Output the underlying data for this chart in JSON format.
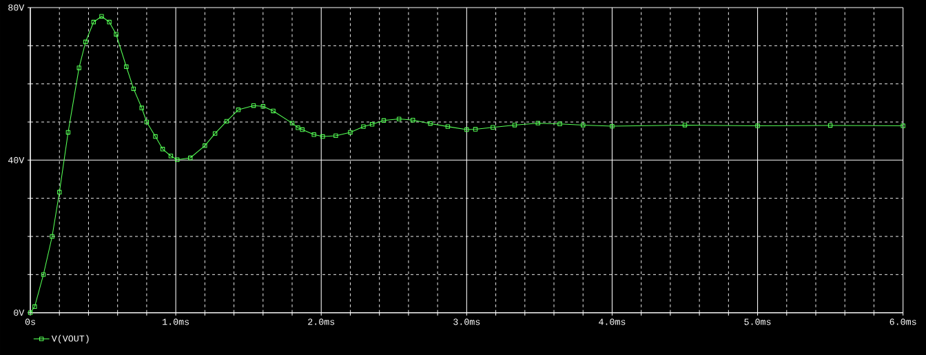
{
  "chart_data": {
    "type": "line",
    "x": [
      0,
      0.03,
      0.09,
      0.15,
      0.2,
      0.26,
      0.335,
      0.38,
      0.435,
      0.49,
      0.543,
      0.59,
      0.66,
      0.71,
      0.766,
      0.8,
      0.86,
      0.91,
      0.966,
      1.01,
      1.1,
      1.2,
      1.27,
      1.35,
      1.43,
      1.535,
      1.6,
      1.67,
      1.8,
      1.84,
      1.87,
      1.95,
      2.01,
      2.1,
      2.2,
      2.29,
      2.35,
      2.43,
      2.535,
      2.63,
      2.75,
      2.87,
      3.0,
      3.06,
      3.18,
      3.33,
      3.49,
      3.64,
      3.8,
      4.0,
      4.5,
      5.0,
      5.5,
      6.0
    ],
    "series": [
      {
        "name": "V(VOUT)",
        "color": "#55ff55",
        "values": [
          0,
          1.6,
          10,
          20,
          31.6,
          47.3,
          64.2,
          71,
          76.2,
          77.7,
          76.2,
          73,
          64.5,
          58.7,
          53.7,
          50,
          46.2,
          42.9,
          41.1,
          40.1,
          40.6,
          43.8,
          47,
          50.2,
          53.2,
          54.3,
          54.1,
          52.9,
          49.7,
          48.5,
          48,
          46.7,
          46.2,
          46.4,
          47.3,
          48.8,
          49.4,
          50.4,
          50.8,
          50.5,
          49.6,
          48.8,
          48,
          48.1,
          48.6,
          49.2,
          49.7,
          49.5,
          49.2,
          48.9,
          49.2,
          49.0,
          49.1,
          49.0
        ]
      }
    ],
    "xlim": [
      0,
      6
    ],
    "ylim": [
      0,
      80
    ],
    "xticks": [
      {
        "value": 0,
        "label": "0s"
      },
      {
        "value": 0.2,
        "label": null
      },
      {
        "value": 0.4,
        "label": null
      },
      {
        "value": 0.6,
        "label": null
      },
      {
        "value": 0.8,
        "label": null
      },
      {
        "value": 1,
        "label": "1.0ms"
      },
      {
        "value": 1.2,
        "label": null
      },
      {
        "value": 1.4,
        "label": null
      },
      {
        "value": 1.6,
        "label": null
      },
      {
        "value": 1.8,
        "label": null
      },
      {
        "value": 2,
        "label": "2.0ms"
      },
      {
        "value": 2.2,
        "label": null
      },
      {
        "value": 2.4,
        "label": null
      },
      {
        "value": 2.6,
        "label": null
      },
      {
        "value": 2.8,
        "label": null
      },
      {
        "value": 3,
        "label": "3.0ms"
      },
      {
        "value": 3.2,
        "label": null
      },
      {
        "value": 3.4,
        "label": null
      },
      {
        "value": 3.6,
        "label": null
      },
      {
        "value": 3.8,
        "label": null
      },
      {
        "value": 4,
        "label": "4.0ms"
      },
      {
        "value": 4.2,
        "label": null
      },
      {
        "value": 4.4,
        "label": null
      },
      {
        "value": 4.6,
        "label": null
      },
      {
        "value": 4.8,
        "label": null
      },
      {
        "value": 5,
        "label": "5.0ms"
      },
      {
        "value": 5.2,
        "label": null
      },
      {
        "value": 5.4,
        "label": null
      },
      {
        "value": 5.6,
        "label": null
      },
      {
        "value": 5.8,
        "label": null
      },
      {
        "value": 6,
        "label": "6.0ms"
      }
    ],
    "yticks": [
      {
        "value": 0,
        "label": "0V"
      },
      {
        "value": 10,
        "label": null
      },
      {
        "value": 20,
        "label": null
      },
      {
        "value": 30,
        "label": null
      },
      {
        "value": 40,
        "label": "40V"
      },
      {
        "value": 50,
        "label": null
      },
      {
        "value": 60,
        "label": null
      },
      {
        "value": 70,
        "label": null
      },
      {
        "value": 80,
        "label": "80V"
      }
    ],
    "grid": true,
    "legend": "bottom left",
    "marker": "square",
    "line_style": "solid"
  }
}
